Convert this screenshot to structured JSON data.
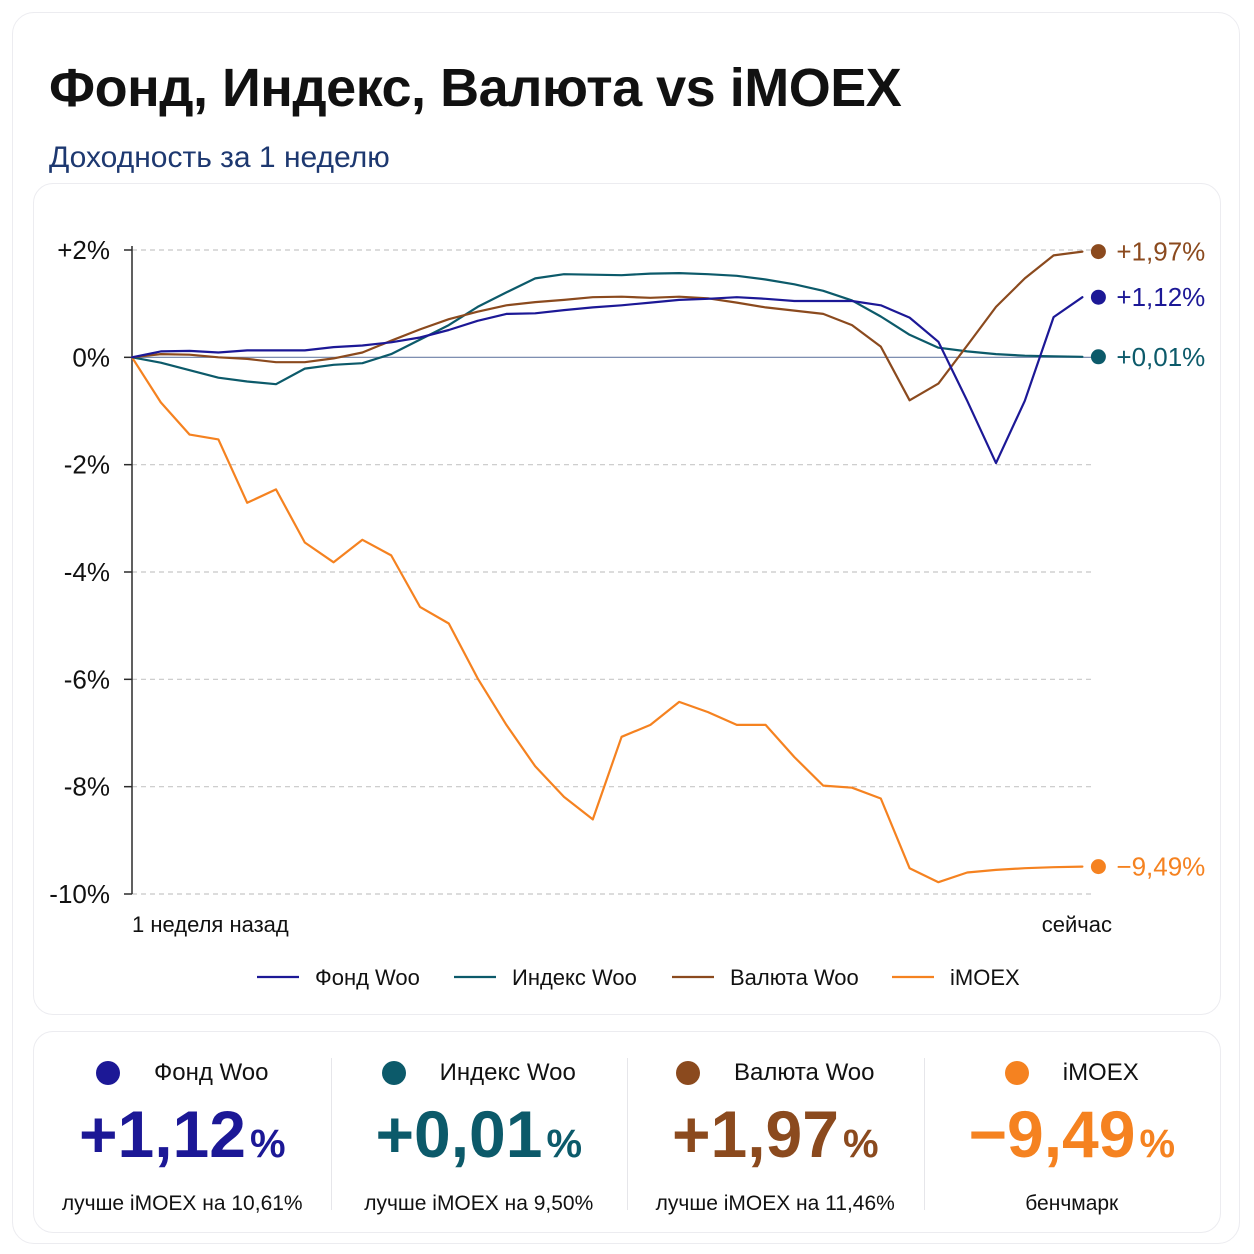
{
  "title": "Фонд, Индекс, Валюта vs iMOEX",
  "subtitle": "Доходность за 1 неделю",
  "colors": {
    "fund": "#1c1896",
    "index": "#0c5a6a",
    "currency": "#8b4a1e",
    "imoex": "#f58220",
    "grid": "#c8c8c8",
    "axis": "#2b2b2b"
  },
  "chart_data": {
    "type": "line",
    "title": "Фонд, Индекс, Валюта vs iMOEX",
    "subtitle": "Доходность за 1 неделю",
    "ylim": [
      -10,
      2.5
    ],
    "yticks": [
      2,
      0,
      -2,
      -4,
      -6,
      -8,
      -10
    ],
    "ytick_labels": [
      "+2%",
      "0%",
      "-2%",
      "-4%",
      "-6%",
      "-8%",
      "-10%"
    ],
    "xlim": [
      0,
      100
    ],
    "xtick_labels": {
      "start": "1 неделя назад",
      "end": "сейчас"
    },
    "grid": true,
    "legend_position": "bottom",
    "x": [
      0,
      3,
      6,
      9,
      12,
      15,
      18,
      21,
      24,
      27,
      30,
      33,
      36,
      39,
      42,
      45,
      48,
      51,
      54,
      57,
      60,
      63,
      66,
      69,
      72,
      75,
      78,
      81,
      84,
      87,
      90,
      93,
      96,
      99
    ],
    "series": [
      {
        "key": "fund",
        "name": "Фонд Woo",
        "end_label": "+1,12%",
        "values": [
          0,
          0.11,
          0.12,
          0.09,
          0.13,
          0.13,
          0.13,
          0.19,
          0.22,
          0.28,
          0.37,
          0.51,
          0.68,
          0.81,
          0.82,
          0.88,
          0.93,
          0.97,
          1.02,
          1.07,
          1.09,
          1.12,
          1.09,
          1.05,
          1.05,
          1.05,
          0.97,
          0.74,
          0.29,
          -0.81,
          -1.97,
          -0.81,
          0.75,
          1.12
        ]
      },
      {
        "key": "index",
        "name": "Индекс Woo",
        "end_label": "+0,01%",
        "values": [
          0,
          -0.1,
          -0.24,
          -0.38,
          -0.45,
          -0.5,
          -0.21,
          -0.14,
          -0.11,
          0.06,
          0.33,
          0.6,
          0.94,
          1.21,
          1.47,
          1.55,
          1.54,
          1.53,
          1.56,
          1.57,
          1.55,
          1.52,
          1.45,
          1.36,
          1.24,
          1.06,
          0.76,
          0.42,
          0.18,
          0.11,
          0.06,
          0.03,
          0.02,
          0.01
        ]
      },
      {
        "key": "currency",
        "name": "Валюта Woo",
        "end_label": "+1,97%",
        "values": [
          0,
          0.06,
          0.05,
          0.0,
          -0.03,
          -0.09,
          -0.09,
          -0.02,
          0.09,
          0.31,
          0.52,
          0.71,
          0.85,
          0.97,
          1.03,
          1.07,
          1.12,
          1.13,
          1.11,
          1.13,
          1.1,
          1.02,
          0.93,
          0.87,
          0.81,
          0.6,
          0.2,
          -0.8,
          -0.49,
          0.22,
          0.94,
          1.47,
          1.9,
          1.97
        ]
      },
      {
        "key": "imoex",
        "name": "iMOEX",
        "end_label": "−9,49%",
        "values": [
          0,
          -0.84,
          -1.44,
          -1.53,
          -2.71,
          -2.46,
          -3.45,
          -3.82,
          -3.4,
          -3.69,
          -4.65,
          -4.96,
          -5.98,
          -6.85,
          -7.62,
          -8.19,
          -8.61,
          -7.07,
          -6.85,
          -6.42,
          -6.61,
          -6.85,
          -6.85,
          -7.45,
          -7.98,
          -8.02,
          -8.22,
          -9.52,
          -9.78,
          -9.6,
          -9.55,
          -9.52,
          -9.5,
          -9.49
        ]
      }
    ]
  },
  "stats": [
    {
      "key": "fund",
      "name": "Фонд Woo",
      "value": "+1,12",
      "pct": "%",
      "note": "лучше iMOEX на 10,61%"
    },
    {
      "key": "index",
      "name": "Индекс Woo",
      "value": "+0,01",
      "pct": "%",
      "note": "лучше iMOEX на 9,50%"
    },
    {
      "key": "currency",
      "name": "Валюта Woo",
      "value": "+1,97",
      "pct": "%",
      "note": "лучше iMOEX на 11,46%"
    },
    {
      "key": "imoex",
      "name": "iMOEX",
      "value": "−9,49",
      "pct": "%",
      "note": "бенчмарк"
    }
  ]
}
